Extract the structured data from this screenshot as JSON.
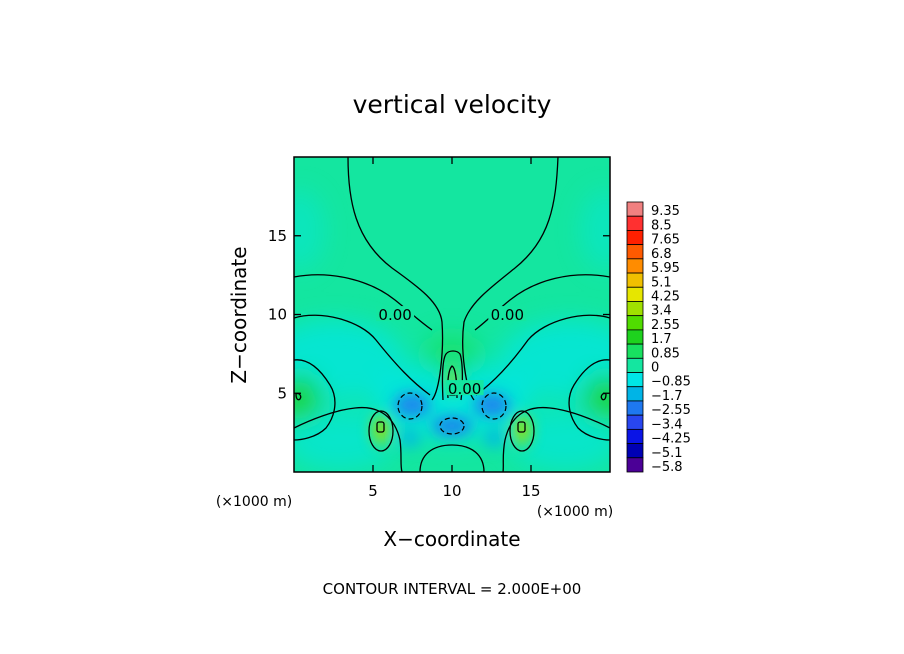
{
  "chart_data": {
    "type": "heatmap",
    "title": "vertical velocity",
    "xlabel": "X−coordinate",
    "ylabel": "Z−coordinate",
    "x_unit": "(×1000 m)",
    "z_unit": "(×1000 m)",
    "xlim": [
      0,
      20
    ],
    "ylim": [
      0,
      20
    ],
    "x_ticks": [
      5,
      10,
      15
    ],
    "y_ticks": [
      5,
      10,
      15
    ],
    "x_tick_labels": [
      "5",
      "10",
      "15"
    ],
    "y_tick_labels": [
      "5",
      "10",
      "15"
    ],
    "colorbar": {
      "labels": [
        "9.35",
        "8.5",
        "7.65",
        "6.8",
        "5.95",
        "5.1",
        "4.25",
        "3.4",
        "2.55",
        "1.7",
        "0.85",
        "0",
        "−0.85",
        "−1.7",
        "−2.55",
        "−3.4",
        "−4.25",
        "−5.1",
        "−5.8"
      ],
      "colors": [
        "#f08080",
        "#ff3030",
        "#ff2000",
        "#ff5a00",
        "#ff8c00",
        "#f0c000",
        "#e6e600",
        "#a0e000",
        "#50dc00",
        "#1ed21e",
        "#18e060",
        "#14e6a0",
        "#00e6e6",
        "#00b4e6",
        "#1e78f0",
        "#2846f0",
        "#0a14e6",
        "#0000b4",
        "#4b0096"
      ]
    },
    "contour_labels": [
      {
        "text": "0.00",
        "x": 6.4,
        "z": 9.9
      },
      {
        "text": "0.00",
        "x": 13.5,
        "z": 9.9
      },
      {
        "text": "0.00",
        "x": 10.8,
        "z": 5.2
      }
    ],
    "grid": false,
    "legend": "colorbar-right"
  },
  "footer": "CONTOUR INTERVAL = 2.000E+00"
}
